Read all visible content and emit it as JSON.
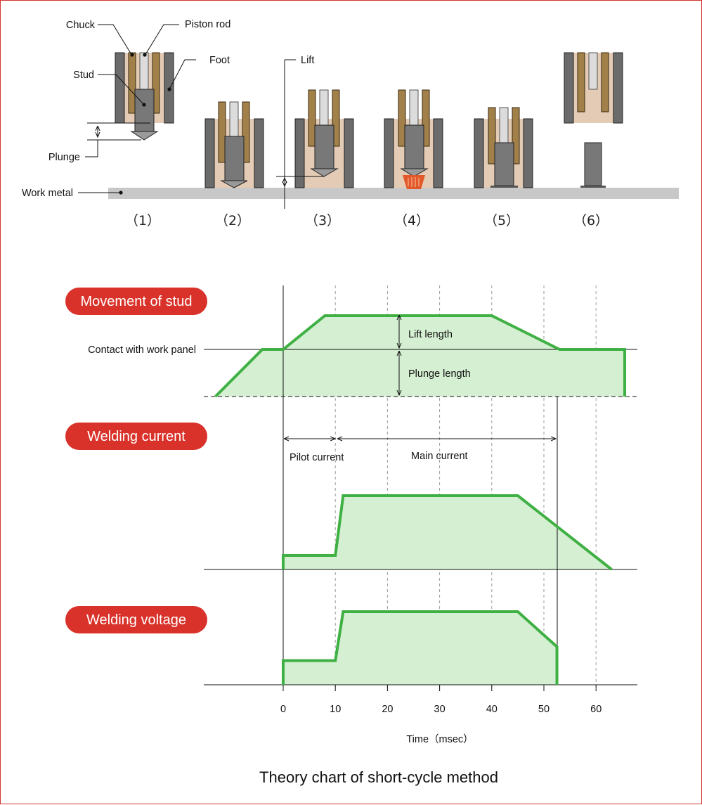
{
  "illustration": {
    "labels": {
      "chuck": "Chuck",
      "piston_rod": "Piston rod",
      "foot": "Foot",
      "stud": "Stud",
      "lift": "Lift",
      "plunge": "Plunge",
      "work_metal": "Work metal"
    },
    "steps": [
      "（1）",
      "（2）",
      "（3）",
      "（4）",
      "（5）",
      "（6）"
    ]
  },
  "sections": {
    "movement": "Movement of stud",
    "current": "Welding current",
    "voltage": "Welding voltage"
  },
  "annotations": {
    "contact": "Contact with work panel",
    "lift_length": "Lift length",
    "plunge_length": "Plunge length",
    "pilot_current": "Pilot current",
    "main_current": "Main current"
  },
  "chart_data": {
    "type": "line",
    "title": "Theory chart of short-cycle method",
    "xlabel": "Time（msec）",
    "x_ticks": [
      0,
      10,
      20,
      30,
      40,
      50,
      60
    ],
    "xlim": [
      -15,
      68
    ],
    "series": [
      {
        "name": "Movement of stud",
        "points": [
          [
            -13,
            -1
          ],
          [
            -4,
            0
          ],
          [
            0,
            0
          ],
          [
            8,
            0.7
          ],
          [
            40,
            0.7
          ],
          [
            53,
            0
          ],
          [
            65.5,
            0
          ],
          [
            65.5,
            -1
          ]
        ]
      },
      {
        "name": "Welding current",
        "points": [
          [
            0,
            0
          ],
          [
            0,
            0.19
          ],
          [
            10,
            0.19
          ],
          [
            11.5,
            1
          ],
          [
            45,
            1
          ],
          [
            63,
            0
          ]
        ]
      },
      {
        "name": "Welding voltage",
        "points": [
          [
            0,
            0
          ],
          [
            0,
            0.33
          ],
          [
            10,
            0.33
          ],
          [
            11.5,
            1
          ],
          [
            45,
            1
          ],
          [
            52.5,
            0.52
          ],
          [
            52.5,
            0
          ]
        ]
      }
    ],
    "colors": {
      "line": "#3fb043",
      "fill": "#d4efd2",
      "badge": "#d9322a"
    }
  }
}
